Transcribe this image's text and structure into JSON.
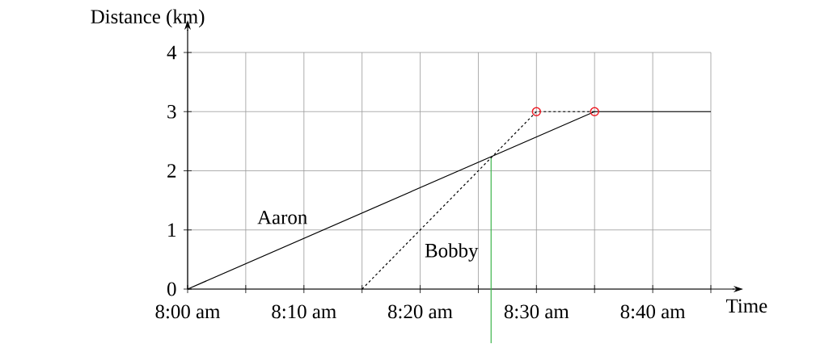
{
  "chart_data": {
    "type": "line",
    "xlabel": "Time",
    "ylabel": "Distance (km)",
    "xlim": [
      8,
      8.75
    ],
    "ylim": [
      0,
      4
    ],
    "xticks": [
      {
        "value": 8,
        "label": "8:00 am"
      },
      {
        "value": 8.0833,
        "label": null
      },
      {
        "value": 8.1667,
        "label": "8:10 am"
      },
      {
        "value": 8.25,
        "label": null
      },
      {
        "value": 8.3333,
        "label": "8:20 am"
      },
      {
        "value": 8.4167,
        "label": null
      },
      {
        "value": 8.5,
        "label": "8:30 am"
      },
      {
        "value": 8.5833,
        "label": null
      },
      {
        "value": 8.6667,
        "label": "8:40 am"
      },
      {
        "value": 8.75,
        "label": null
      }
    ],
    "yticks": [
      0,
      1,
      2,
      3,
      4
    ],
    "grid": true,
    "series": [
      {
        "name": "Aaron",
        "color": "#000000",
        "line_style": "solid",
        "x": [
          8,
          8.5833,
          8.75
        ],
        "values": [
          0,
          3,
          3
        ]
      },
      {
        "name": "Bobby",
        "color": "#000000",
        "line_style": "dashed",
        "x": [
          8.25,
          8.5,
          8.5833
        ],
        "values": [
          0,
          3,
          3
        ]
      },
      {
        "type": "scatter",
        "color": "#ee1c25",
        "marker": "circle",
        "x": [
          8.5,
          8.5833
        ],
        "values": [
          3,
          3
        ]
      }
    ],
    "ref_lines": [
      {
        "axis": "x",
        "value": 8.435,
        "color": "#3cb44b"
      }
    ]
  }
}
